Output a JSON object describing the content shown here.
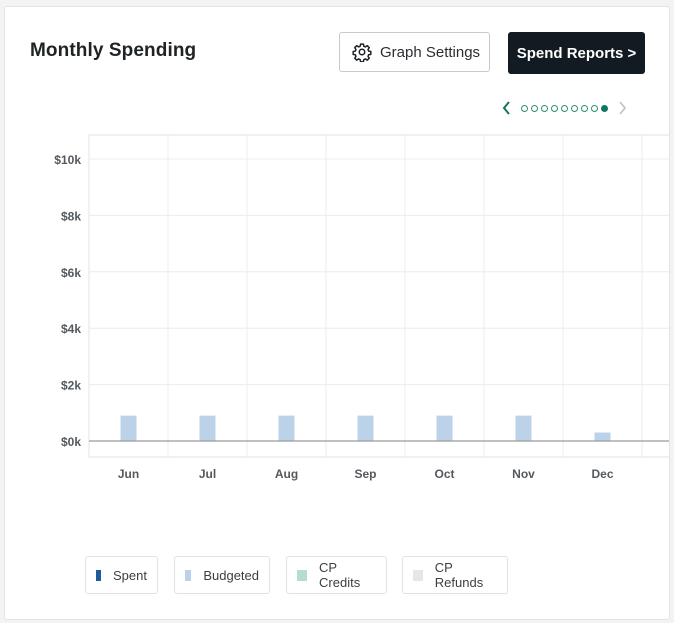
{
  "header": {
    "title": "Monthly Spending",
    "graph_settings_label": "Graph Settings",
    "spend_reports_label": "Spend Reports >"
  },
  "pager": {
    "total_pages": 9,
    "active_page": 9
  },
  "colors": {
    "accent": "#127563",
    "dark_button": "#121b21",
    "spent": "#1f5c99",
    "budgeted": "#bcd2e8",
    "cp_credits": "#b5dcd3",
    "cp_refunds": "#e6e6e6"
  },
  "chart_data": {
    "type": "bar",
    "categories": [
      "Jun",
      "Jul",
      "Aug",
      "Sep",
      "Oct",
      "Nov",
      "Dec"
    ],
    "series": [
      {
        "name": "Spent",
        "values": [
          0,
          0,
          0,
          0,
          0,
          0,
          0
        ],
        "color": "#1f5c99"
      },
      {
        "name": "Budgeted",
        "values": [
          900,
          900,
          900,
          900,
          900,
          900,
          300
        ],
        "color": "#bcd2e8"
      },
      {
        "name": "CP Credits",
        "values": [
          0,
          0,
          0,
          0,
          0,
          0,
          0
        ],
        "color": "#b5dcd3"
      },
      {
        "name": "CP Refunds",
        "values": [
          0,
          0,
          0,
          0,
          0,
          0,
          0
        ],
        "color": "#e6e6e6"
      }
    ],
    "yticks": [
      0,
      2000,
      4000,
      6000,
      8000,
      10000
    ],
    "ytick_labels": [
      "$0k",
      "$2k",
      "$4k",
      "$6k",
      "$8k",
      "$10k"
    ],
    "ylim": [
      0,
      10000
    ],
    "grid": true,
    "legend_position": "bottom"
  }
}
